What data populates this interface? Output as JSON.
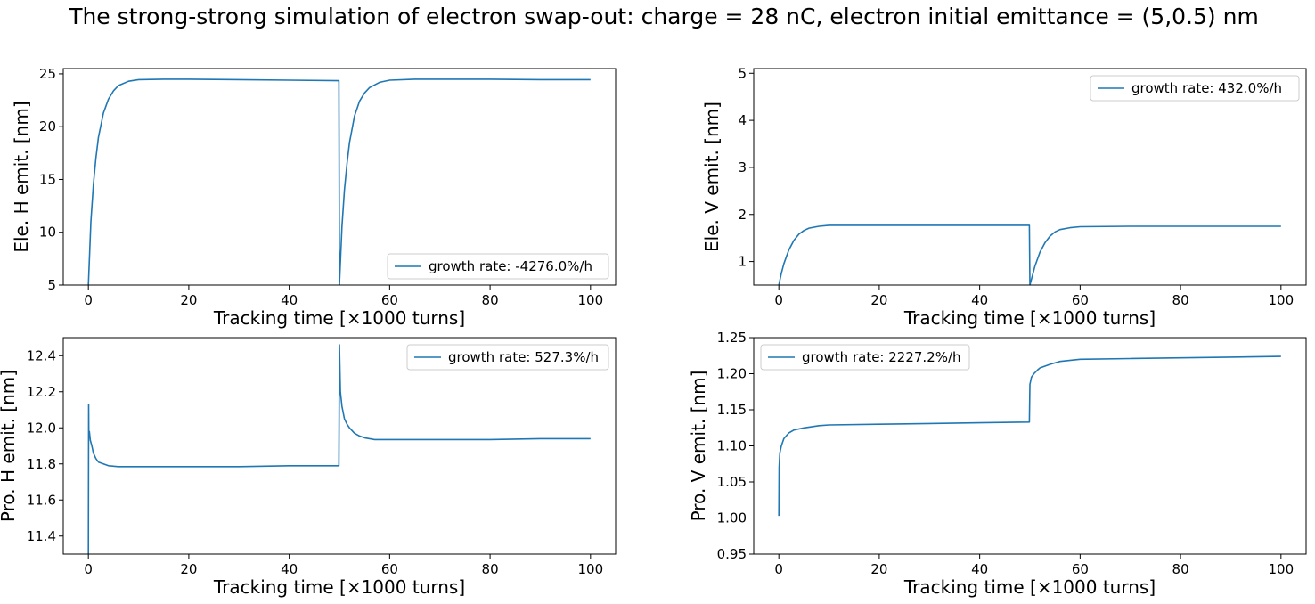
{
  "figure": {
    "suptitle": "The strong-strong simulation of electron swap-out: charge = 28 nC, electron initial emittance = (5,0.5) nm",
    "line_color": "#1f77b4"
  },
  "chart_data": [
    {
      "type": "line",
      "xlabel": "Tracking time [×1000 turns]",
      "ylabel": "Ele. H emit. [nm]",
      "xlim": [
        -5,
        105
      ],
      "ylim": [
        5,
        25.5
      ],
      "xticks": [
        0,
        20,
        40,
        60,
        80,
        100
      ],
      "xtick_labels": [
        "0",
        "20",
        "40",
        "60",
        "80",
        "100"
      ],
      "yticks": [
        5,
        10,
        15,
        20,
        25
      ],
      "ytick_labels": [
        "5",
        "10",
        "15",
        "20",
        "25"
      ],
      "legend": {
        "position": "lower right",
        "entries": [
          "growth rate: -4276.0%/h"
        ]
      },
      "grid": false,
      "series": [
        {
          "name": "growth rate: -4276.0%/h",
          "x": [
            0,
            0.5,
            1,
            1.5,
            2,
            3,
            4,
            5,
            6,
            8,
            10,
            15,
            20,
            30,
            40,
            49.9,
            50,
            50.5,
            51,
            51.5,
            52,
            53,
            54,
            55,
            56,
            58,
            60,
            65,
            70,
            80,
            90,
            100
          ],
          "y": [
            5.0,
            11.0,
            14.5,
            17.0,
            19.0,
            21.3,
            22.6,
            23.4,
            23.9,
            24.3,
            24.45,
            24.5,
            24.5,
            24.45,
            24.4,
            24.35,
            5.0,
            10.5,
            14.0,
            16.5,
            18.5,
            21.0,
            22.4,
            23.2,
            23.7,
            24.2,
            24.4,
            24.5,
            24.5,
            24.5,
            24.45,
            24.45
          ]
        }
      ]
    },
    {
      "type": "line",
      "xlabel": "Tracking time [×1000 turns]",
      "ylabel": "Ele. V emit. [nm]",
      "xlim": [
        -5,
        105
      ],
      "ylim": [
        0.5,
        5.1
      ],
      "xticks": [
        0,
        20,
        40,
        60,
        80,
        100
      ],
      "xtick_labels": [
        "0",
        "20",
        "40",
        "60",
        "80",
        "100"
      ],
      "yticks": [
        1,
        2,
        3,
        4,
        5
      ],
      "ytick_labels": [
        "1",
        "2",
        "3",
        "4",
        "5"
      ],
      "legend": {
        "position": "upper right",
        "entries": [
          "growth rate: 432.0%/h"
        ]
      },
      "grid": false,
      "series": [
        {
          "name": "growth rate: 432.0%/h",
          "x": [
            0,
            0.5,
            1,
            1.5,
            2,
            3,
            4,
            5,
            6,
            8,
            10,
            15,
            20,
            30,
            40,
            49.9,
            50,
            50.5,
            51,
            52,
            53,
            54,
            55,
            56,
            58,
            60,
            70,
            80,
            90,
            100
          ],
          "y": [
            0.5,
            0.75,
            0.95,
            1.1,
            1.25,
            1.45,
            1.58,
            1.66,
            1.71,
            1.75,
            1.77,
            1.77,
            1.77,
            1.77,
            1.77,
            1.77,
            0.5,
            0.7,
            0.9,
            1.2,
            1.4,
            1.54,
            1.63,
            1.68,
            1.72,
            1.74,
            1.75,
            1.75,
            1.75,
            1.75
          ]
        }
      ]
    },
    {
      "type": "line",
      "xlabel": "Tracking time [×1000 turns]",
      "ylabel": "Pro. H emit. [nm]",
      "xlim": [
        -5,
        105
      ],
      "ylim": [
        11.3,
        12.5
      ],
      "xticks": [
        0,
        20,
        40,
        60,
        80,
        100
      ],
      "xtick_labels": [
        "0",
        "20",
        "40",
        "60",
        "80",
        "100"
      ],
      "yticks": [
        11.4,
        11.6,
        11.8,
        12.0,
        12.2,
        12.4
      ],
      "ytick_labels": [
        "11.4",
        "11.6",
        "11.8",
        "12.0",
        "12.2",
        "12.4"
      ],
      "legend": {
        "position": "upper right",
        "entries": [
          "growth rate: 527.3%/h"
        ]
      },
      "grid": false,
      "series": [
        {
          "name": "growth rate: 527.3%/h",
          "x": [
            0,
            0.05,
            0.1,
            0.2,
            0.4,
            0.7,
            1,
            1.5,
            2,
            3,
            4,
            6,
            8,
            10,
            20,
            30,
            40,
            49.9,
            50,
            50.2,
            50.5,
            51,
            51.5,
            52,
            53,
            54,
            55,
            57,
            60,
            70,
            80,
            90,
            100
          ],
          "y": [
            11.3,
            12.13,
            11.95,
            11.98,
            11.93,
            11.9,
            11.86,
            11.83,
            11.81,
            11.8,
            11.79,
            11.785,
            11.785,
            11.785,
            11.785,
            11.785,
            11.79,
            11.79,
            12.46,
            12.2,
            12.12,
            12.05,
            12.02,
            12.0,
            11.97,
            11.955,
            11.945,
            11.935,
            11.935,
            11.935,
            11.935,
            11.94,
            11.94
          ]
        }
      ]
    },
    {
      "type": "line",
      "xlabel": "Tracking time [×1000 turns]",
      "ylabel": "Pro. V emit. [nm]",
      "xlim": [
        -5,
        105
      ],
      "ylim": [
        0.95,
        1.25
      ],
      "xticks": [
        0,
        20,
        40,
        60,
        80,
        100
      ],
      "xtick_labels": [
        "0",
        "20",
        "40",
        "60",
        "80",
        "100"
      ],
      "yticks": [
        0.95,
        1.0,
        1.05,
        1.1,
        1.15,
        1.2,
        1.25
      ],
      "ytick_labels": [
        "0.95",
        "1.00",
        "1.05",
        "1.10",
        "1.15",
        "1.20",
        "1.25"
      ],
      "legend": {
        "position": "upper left",
        "entries": [
          "growth rate: 2227.2%/h"
        ]
      },
      "grid": false,
      "series": [
        {
          "name": "growth rate: 2227.2%/h",
          "x": [
            0,
            0.05,
            0.2,
            0.5,
            1,
            2,
            3,
            5,
            8,
            10,
            20,
            30,
            40,
            49.9,
            50,
            50.3,
            50.8,
            51.5,
            52,
            54,
            56,
            60,
            70,
            80,
            90,
            100
          ],
          "y": [
            1.003,
            1.07,
            1.09,
            1.1,
            1.11,
            1.118,
            1.122,
            1.125,
            1.128,
            1.129,
            1.13,
            1.131,
            1.132,
            1.133,
            1.185,
            1.195,
            1.2,
            1.205,
            1.208,
            1.213,
            1.217,
            1.22,
            1.221,
            1.222,
            1.223,
            1.224
          ]
        }
      ]
    }
  ]
}
